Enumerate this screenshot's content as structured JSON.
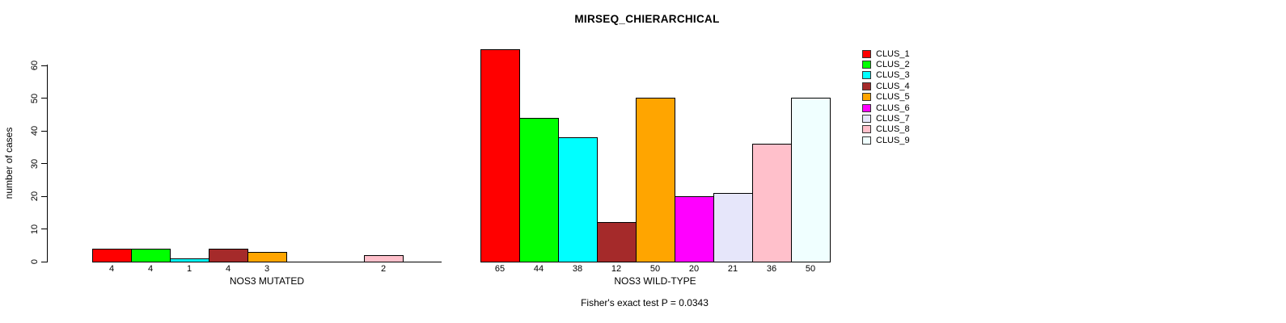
{
  "chart_data": {
    "type": "bar",
    "title": "MIRSEQ_CHIERARCHICAL",
    "ylabel": "number of cases",
    "ylim": [
      0,
      60
    ],
    "yticks": [
      0,
      10,
      20,
      30,
      40,
      50,
      60
    ],
    "grid": false,
    "legend_position": "right",
    "annotation": "Fisher's exact test P = 0.0343",
    "legend": [
      {
        "label": "CLUS_1",
        "color": "#FF0000"
      },
      {
        "label": "CLUS_2",
        "color": "#00FF00"
      },
      {
        "label": "CLUS_3",
        "color": "#00FFFF"
      },
      {
        "label": "CLUS_4",
        "color": "#A52A2A"
      },
      {
        "label": "CLUS_5",
        "color": "#FFA500"
      },
      {
        "label": "CLUS_6",
        "color": "#FF00FF"
      },
      {
        "label": "CLUS_7",
        "color": "#E6E6FA"
      },
      {
        "label": "CLUS_8",
        "color": "#FFC0CB"
      },
      {
        "label": "CLUS_9",
        "color": "#F0FFFF"
      }
    ],
    "panels": [
      {
        "xlabel": "NOS3 MUTATED",
        "values": [
          4,
          4,
          1,
          4,
          3,
          0,
          0,
          2,
          0
        ],
        "bar_labels": [
          "4",
          "4",
          "1",
          "4",
          "3",
          "",
          "",
          "2",
          ""
        ]
      },
      {
        "xlabel": "NOS3 WILD-TYPE",
        "values": [
          65,
          44,
          38,
          12,
          50,
          20,
          21,
          36,
          50
        ],
        "bar_labels": [
          "65",
          "44",
          "38",
          "12",
          "50",
          "20",
          "21",
          "36",
          "50"
        ]
      }
    ]
  }
}
